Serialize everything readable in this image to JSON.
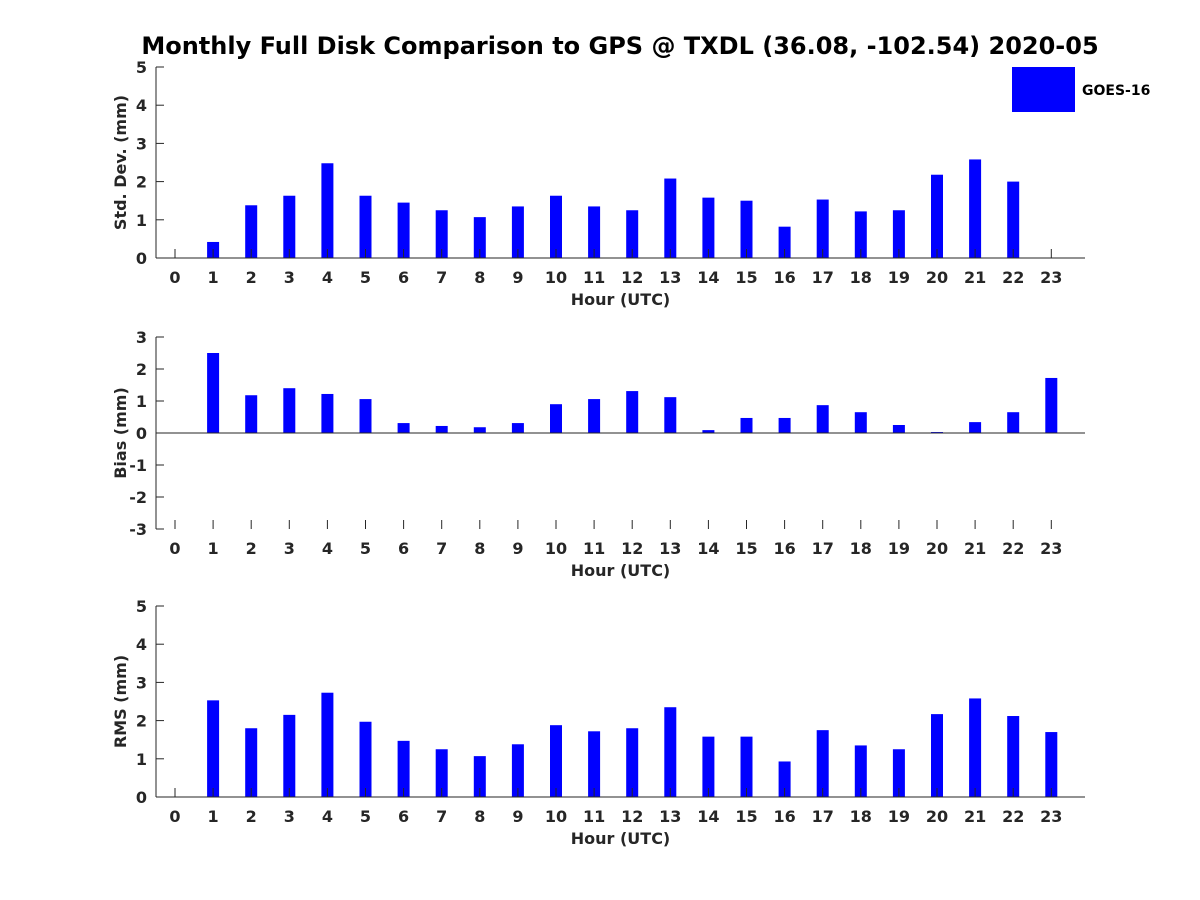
{
  "chart_data": {
    "title": "Monthly Full Disk Comparison to GPS @ TXDL (36.08, -102.54) 2020-05",
    "legend": {
      "label": "GOES-16",
      "color": "#0000ff",
      "position": "top-right"
    },
    "bar_color": "#0000ff",
    "panels": [
      {
        "type": "bar",
        "xlabel": "Hour (UTC)",
        "ylabel": "Std. Dev. (mm)",
        "ylim": [
          0,
          5
        ],
        "yticks": [
          0,
          1,
          2,
          3,
          4,
          5
        ],
        "categories": [
          "0",
          "1",
          "2",
          "3",
          "4",
          "5",
          "6",
          "7",
          "8",
          "9",
          "10",
          "11",
          "12",
          "13",
          "14",
          "15",
          "16",
          "17",
          "18",
          "19",
          "20",
          "21",
          "22",
          "23"
        ],
        "values": [
          0,
          0.42,
          1.38,
          1.63,
          2.48,
          1.63,
          1.45,
          1.25,
          1.07,
          1.35,
          1.63,
          1.35,
          1.25,
          2.08,
          1.58,
          1.5,
          0.82,
          1.53,
          1.22,
          1.25,
          2.18,
          2.58,
          2.0,
          0
        ]
      },
      {
        "type": "bar",
        "xlabel": "Hour (UTC)",
        "ylabel": "Bias (mm)",
        "ylim": [
          -3,
          3
        ],
        "yticks": [
          -3,
          -2,
          -1,
          0,
          1,
          2,
          3
        ],
        "categories": [
          "0",
          "1",
          "2",
          "3",
          "4",
          "5",
          "6",
          "7",
          "8",
          "9",
          "10",
          "11",
          "12",
          "13",
          "14",
          "15",
          "16",
          "17",
          "18",
          "19",
          "20",
          "21",
          "22",
          "23"
        ],
        "values": [
          0,
          2.5,
          1.18,
          1.4,
          1.22,
          1.06,
          0.31,
          0.22,
          0.18,
          0.31,
          0.9,
          1.06,
          1.31,
          1.12,
          0.09,
          0.47,
          0.47,
          0.87,
          0.65,
          0.25,
          0.03,
          0.34,
          0.65,
          1.72
        ]
      },
      {
        "type": "bar",
        "xlabel": "Hour (UTC)",
        "ylabel": "RMS (mm)",
        "ylim": [
          0,
          5
        ],
        "yticks": [
          0,
          1,
          2,
          3,
          4,
          5
        ],
        "categories": [
          "0",
          "1",
          "2",
          "3",
          "4",
          "5",
          "6",
          "7",
          "8",
          "9",
          "10",
          "11",
          "12",
          "13",
          "14",
          "15",
          "16",
          "17",
          "18",
          "19",
          "20",
          "21",
          "22",
          "23"
        ],
        "values": [
          0,
          2.53,
          1.8,
          2.15,
          2.73,
          1.97,
          1.47,
          1.25,
          1.07,
          1.38,
          1.88,
          1.72,
          1.8,
          2.35,
          1.58,
          1.58,
          0.93,
          1.75,
          1.35,
          1.25,
          2.17,
          2.58,
          2.12,
          1.7
        ]
      }
    ]
  }
}
